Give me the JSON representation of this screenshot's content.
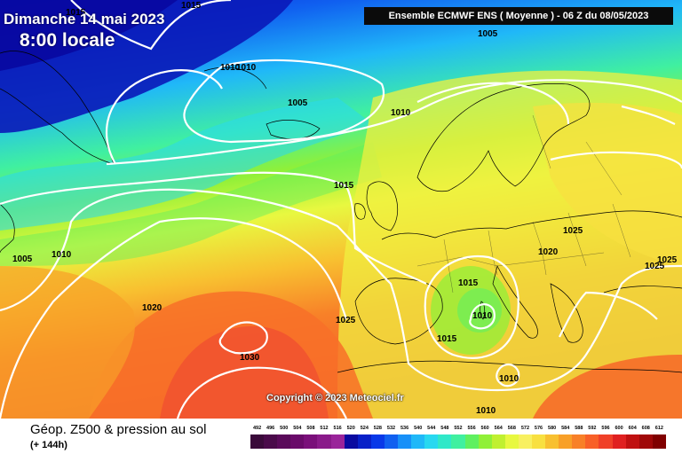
{
  "header": {
    "date": "Dimanche 14 mai 2023",
    "time": "8:00 locale",
    "run": "Ensemble ECMWF ENS  ( Moyenne )  -  06 Z du 08/05/2023"
  },
  "footer": {
    "title": "Géop. Z500 & pression au sol",
    "forecast_hour": "(+ 144h)",
    "copyright": "Copyright © 2023 Meteociel.fr"
  },
  "legend": {
    "levels": [
      "492",
      "496",
      "500",
      "504",
      "508",
      "512",
      "516",
      "520",
      "524",
      "528",
      "532",
      "536",
      "540",
      "544",
      "548",
      "552",
      "556",
      "560",
      "564",
      "568",
      "572",
      "576",
      "580",
      "584",
      "588",
      "592",
      "596",
      "600",
      "604",
      "608",
      "612"
    ],
    "colors": [
      "#3a0a3a",
      "#4a0a4a",
      "#5a0a5a",
      "#6a0a6a",
      "#7a0f7a",
      "#8a1a8a",
      "#9a249a",
      "#0a0aa0",
      "#0820c8",
      "#0838e8",
      "#1060f0",
      "#1890f8",
      "#20b8f8",
      "#28d8f0",
      "#30e8c8",
      "#40f0a0",
      "#60f060",
      "#90f038",
      "#c0f030",
      "#e8f840",
      "#f8f060",
      "#f8e040",
      "#f8c030",
      "#f8a028",
      "#f88028",
      "#f86028",
      "#f04028",
      "#e02020",
      "#c01010",
      "#a00808",
      "#800000"
    ]
  },
  "map": {
    "pressure_labels": [
      {
        "text": "1015"
      },
      {
        "text": "1015"
      },
      {
        "text": "1005"
      },
      {
        "text": "1010"
      },
      {
        "text": "1010"
      },
      {
        "text": "1005"
      },
      {
        "text": "1010"
      },
      {
        "text": "1015"
      },
      {
        "text": "1005"
      },
      {
        "text": "1010"
      },
      {
        "text": "1020"
      },
      {
        "text": "1025"
      },
      {
        "text": "1030"
      },
      {
        "text": "1025"
      },
      {
        "text": "1020"
      },
      {
        "text": "1025"
      },
      {
        "text": "1025"
      },
      {
        "text": "1015"
      },
      {
        "text": "1010"
      },
      {
        "text": "1015"
      },
      {
        "text": "1010"
      },
      {
        "text": "1010"
      }
    ]
  }
}
